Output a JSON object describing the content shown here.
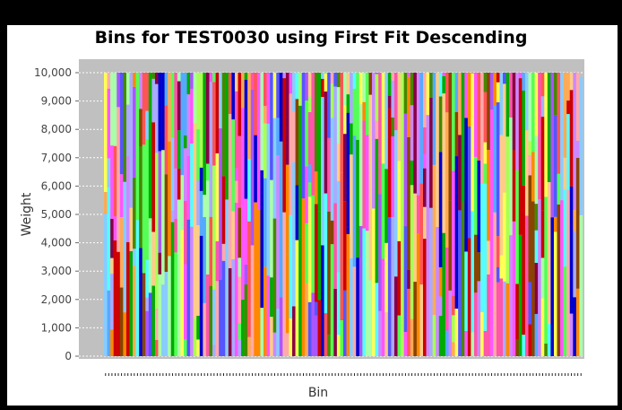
{
  "chart_data": {
    "type": "bar",
    "stacked": true,
    "title": "Bins for TEST0030 using First Fit Descending",
    "xlabel": "Bin",
    "ylabel": "Weight",
    "ylim": [
      0,
      10000
    ],
    "y_ticks": [
      "0",
      "1,000",
      "2,000",
      "3,000",
      "4,000",
      "5,000",
      "6,000",
      "7,000",
      "8,000",
      "9,000",
      "10,000"
    ],
    "bin_count": 150,
    "bin_capacity": 10000,
    "bins_total_weight": [
      10000,
      10000,
      10000,
      10000,
      10000,
      10000,
      10000,
      10000,
      10000,
      10000,
      10000,
      10000,
      10000,
      10000,
      10000,
      10000,
      10000,
      10000,
      10000,
      10000,
      10000,
      10000,
      10000,
      10000,
      10000,
      10000,
      10000,
      10000,
      10000,
      10000,
      10000,
      10000,
      10000,
      10000,
      10000,
      10000,
      10000,
      10000,
      10000,
      10000,
      10000,
      10000,
      10000,
      10000,
      10000,
      10000,
      10000,
      10000,
      10000,
      10000,
      10000,
      10000,
      10000,
      10000,
      10000,
      10000,
      10000,
      10000,
      10000,
      10000,
      10000,
      10000,
      10000,
      10000,
      10000,
      10000,
      10000,
      10000,
      10000,
      10000,
      10000,
      10000,
      10000,
      10000,
      10000,
      10000,
      10000,
      10000,
      10000,
      10000,
      10000,
      10000,
      10000,
      10000,
      10000,
      10000,
      10000,
      10000,
      10000,
      10000,
      10000,
      10000,
      10000,
      10000,
      10000,
      10000,
      10000,
      10000,
      10000,
      10000,
      10000,
      10000,
      10000,
      10000,
      10000,
      10000,
      10000,
      10000,
      10000,
      10000,
      10000,
      10000,
      10000,
      10000,
      10000,
      10000,
      10000,
      10000,
      10000,
      10000,
      10000,
      10000,
      10000,
      10000,
      10000,
      10000,
      10000,
      10000,
      10000,
      10000,
      10000,
      10000,
      10000,
      10000,
      10000,
      10000,
      10000,
      10000,
      10000,
      10000,
      10000,
      10000,
      10000,
      10000,
      10000,
      10000,
      10000,
      10000,
      10000,
      9850
    ],
    "plot_background": "#c0c0c0",
    "gridlines": true,
    "legend": "none",
    "item_colors": [
      "#ff5555",
      "#5555ff",
      "#55ff55",
      "#ffff55",
      "#ff55ff",
      "#55ffff",
      "#ffaaaa",
      "#aaaaff",
      "#aaffaa",
      "#ffaa55",
      "#aa55ff",
      "#ff55aa",
      "#55aaff",
      "#aaff55",
      "#cc0000",
      "#0000cc",
      "#00aa00",
      "#ff8800",
      "#884400",
      "#448800",
      "#880044",
      "#ffcc88",
      "#88ccff",
      "#cc88ff"
    ]
  }
}
